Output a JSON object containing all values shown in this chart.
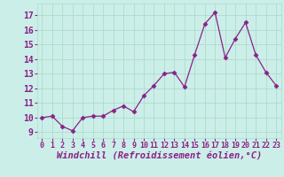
{
  "x": [
    0,
    1,
    2,
    3,
    4,
    5,
    6,
    7,
    8,
    9,
    10,
    11,
    12,
    13,
    14,
    15,
    16,
    17,
    18,
    19,
    20,
    21,
    22,
    23
  ],
  "y": [
    10.0,
    10.1,
    9.4,
    9.1,
    10.0,
    10.1,
    10.1,
    10.5,
    10.8,
    10.4,
    11.5,
    12.2,
    13.0,
    13.1,
    12.1,
    14.3,
    16.4,
    17.2,
    14.1,
    15.4,
    16.5,
    14.3,
    13.1,
    12.2
  ],
  "line_color": "#882288",
  "marker": "D",
  "marker_size": 2.5,
  "bg_color": "#cceee8",
  "grid_color": "#aaddcc",
  "xlabel": "Windchill (Refroidissement éolien,°C)",
  "xlabel_fontsize": 7.5,
  "yticks": [
    9,
    10,
    11,
    12,
    13,
    14,
    15,
    16,
    17
  ],
  "xticks": [
    0,
    1,
    2,
    3,
    4,
    5,
    6,
    7,
    8,
    9,
    10,
    11,
    12,
    13,
    14,
    15,
    16,
    17,
    18,
    19,
    20,
    21,
    22,
    23
  ],
  "ylim": [
    8.6,
    17.8
  ],
  "xlim": [
    -0.5,
    23.5
  ],
  "ytick_fontsize": 7,
  "xtick_fontsize": 6,
  "line_width": 0.9,
  "label_color": "#882288"
}
